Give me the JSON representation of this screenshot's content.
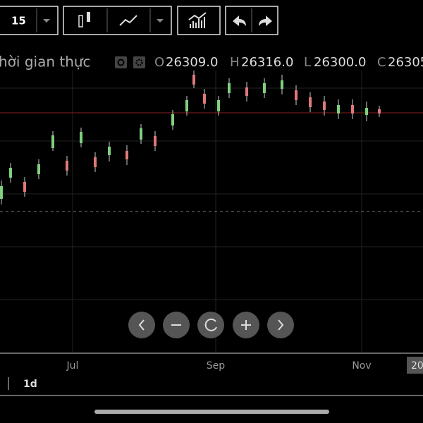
{
  "toolbar": {
    "interval": "15"
  },
  "legend": {
    "title": "hời gian thực",
    "open_label": "O",
    "open": "26309.0",
    "high_label": "H",
    "high": "26316.0",
    "low_label": "L",
    "low": "26300.0",
    "close_label": "C",
    "close": "26305"
  },
  "x_axis": {
    "labels": [
      "Jul",
      "Sep",
      "Nov"
    ],
    "cursor_label": "20"
  },
  "range": {
    "label": "1d"
  }
}
